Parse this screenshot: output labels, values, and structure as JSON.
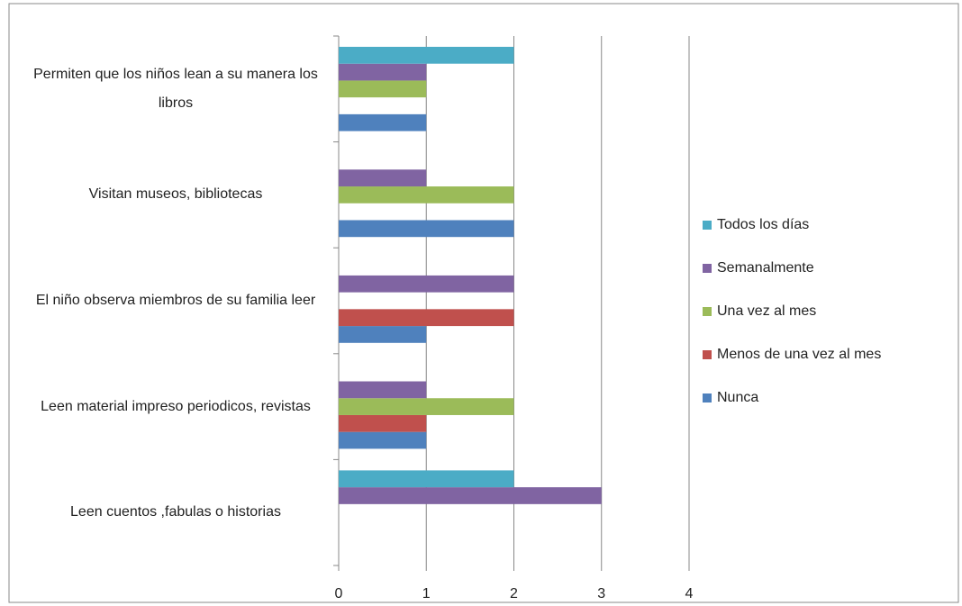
{
  "chart_data": {
    "type": "bar",
    "orientation": "horizontal",
    "categories": [
      "Leen cuentos ,fabulas o historias",
      "Leen material impreso periodicos, revistas",
      "El niño observa miembros de su familia leer",
      "Visitan museos, bibliotecas",
      "Permiten que los niños lean a su manera los libros"
    ],
    "series": [
      {
        "name": "Nunca",
        "color": "#4f81bd",
        "values": [
          0,
          1,
          1,
          2,
          1
        ]
      },
      {
        "name": "Menos de una vez al mes",
        "color": "#c0504d",
        "values": [
          0,
          1,
          2,
          0,
          0
        ]
      },
      {
        "name": "Una vez al mes",
        "color": "#9bbb59",
        "values": [
          0,
          2,
          0,
          2,
          1
        ]
      },
      {
        "name": "Semanalmente",
        "color": "#8064a2",
        "values": [
          3,
          1,
          2,
          1,
          1
        ]
      },
      {
        "name": "Todos los días",
        "color": "#4bacc6",
        "values": [
          2,
          0,
          0,
          0,
          2
        ]
      }
    ],
    "xlim": [
      0,
      4
    ],
    "xticks": [
      0,
      1,
      2,
      3,
      4
    ],
    "grid": true,
    "legend": "right"
  }
}
